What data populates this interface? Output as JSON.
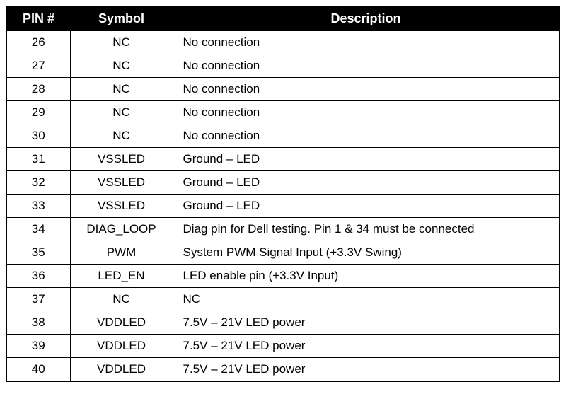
{
  "table": {
    "columns": [
      {
        "key": "pin",
        "label": "PIN #",
        "width": 90,
        "align": "center"
      },
      {
        "key": "symbol",
        "label": "Symbol",
        "width": 145,
        "align": "center"
      },
      {
        "key": "description",
        "label": "Description",
        "align": "left"
      }
    ],
    "header_bg": "#000000",
    "header_fg": "#ffffff",
    "border_color": "#000000",
    "row_bg": "#ffffff",
    "cell_fg": "#000000",
    "header_fontsize": 18,
    "cell_fontsize": 17,
    "rows": [
      {
        "pin": "26",
        "symbol": "NC",
        "description": "No connection"
      },
      {
        "pin": "27",
        "symbol": "NC",
        "description": "No connection"
      },
      {
        "pin": "28",
        "symbol": "NC",
        "description": "No connection"
      },
      {
        "pin": "29",
        "symbol": "NC",
        "description": "No connection"
      },
      {
        "pin": "30",
        "symbol": "NC",
        "description": "No connection"
      },
      {
        "pin": "31",
        "symbol": "VSSLED",
        "description": "Ground – LED"
      },
      {
        "pin": "32",
        "symbol": "VSSLED",
        "description": "Ground – LED"
      },
      {
        "pin": "33",
        "symbol": "VSSLED",
        "description": "Ground – LED"
      },
      {
        "pin": "34",
        "symbol": "DIAG_LOOP",
        "description": "Diag pin for Dell testing. Pin 1 & 34 must be connected"
      },
      {
        "pin": "35",
        "symbol": "PWM",
        "description": "System PWM Signal Input (+3.3V Swing)"
      },
      {
        "pin": "36",
        "symbol": "LED_EN",
        "description": "LED enable pin (+3.3V Input)"
      },
      {
        "pin": "37",
        "symbol": "NC",
        "description": "NC"
      },
      {
        "pin": "38",
        "symbol": "VDDLED",
        "description": "7.5V – 21V LED power"
      },
      {
        "pin": "39",
        "symbol": "VDDLED",
        "description": "7.5V – 21V LED power"
      },
      {
        "pin": "40",
        "symbol": "VDDLED",
        "description": "7.5V – 21V LED power"
      }
    ]
  }
}
